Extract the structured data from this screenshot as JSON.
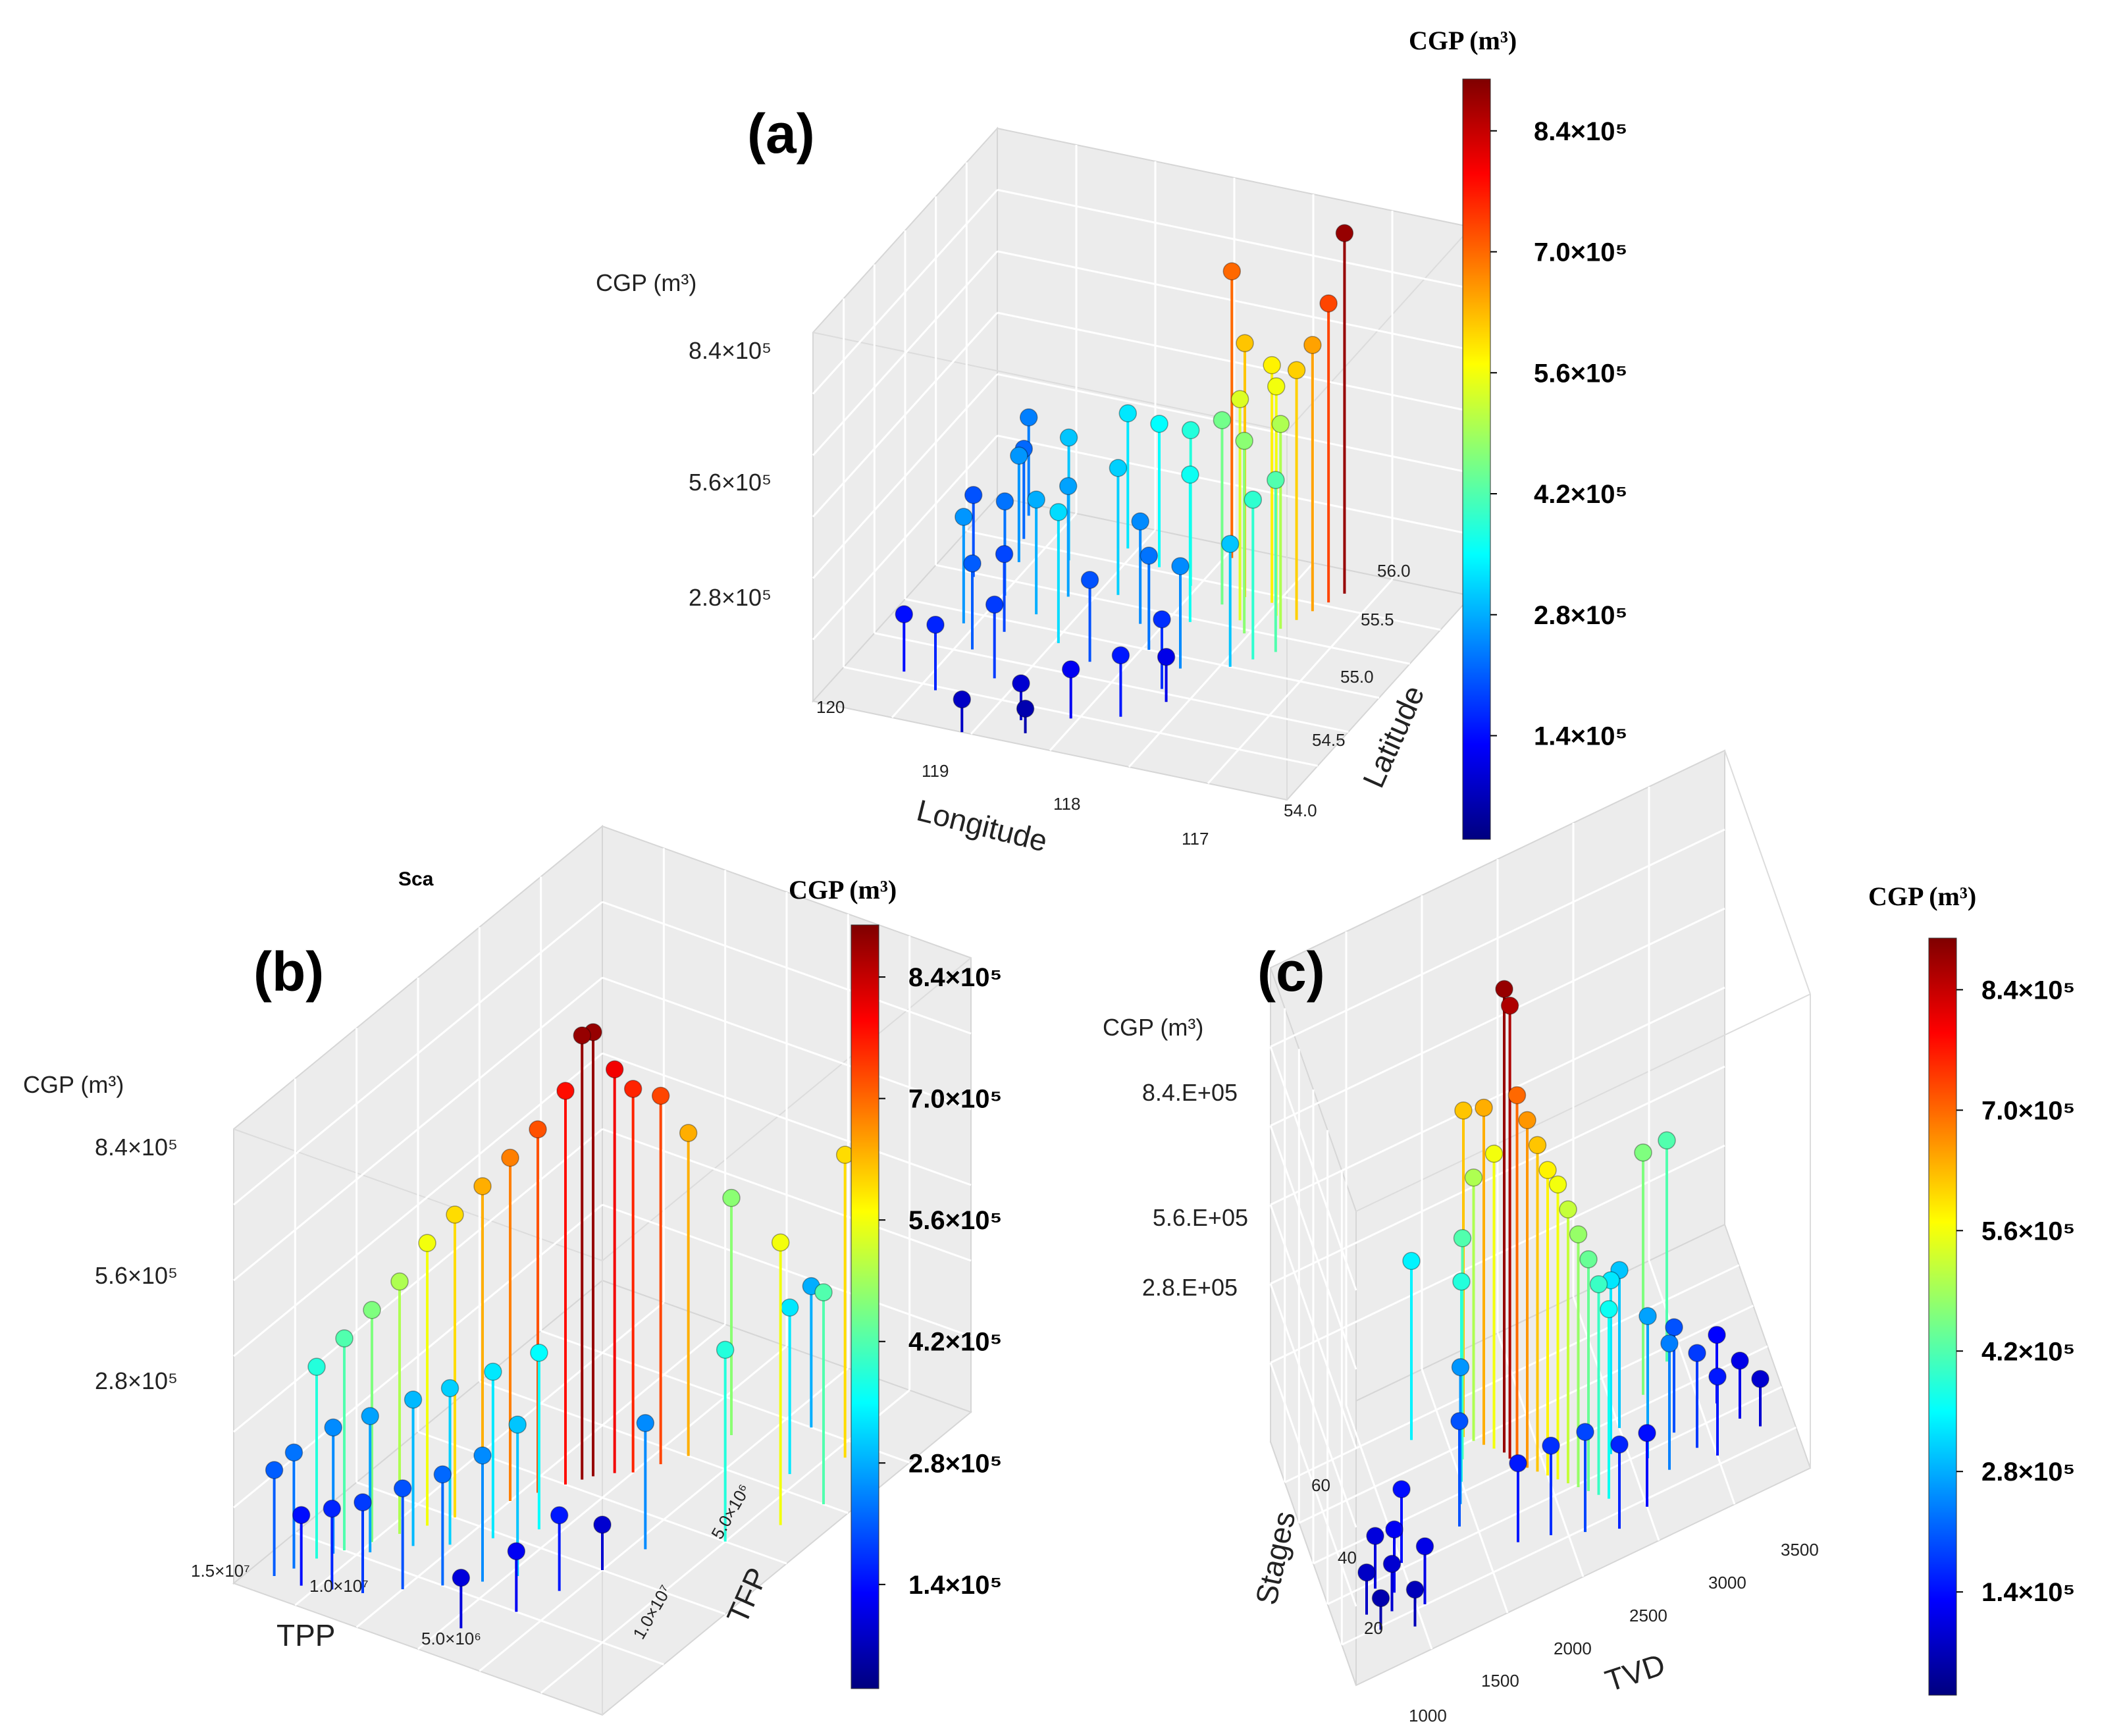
{
  "figure": {
    "stray_text": "Sca"
  },
  "colors": {
    "colormap": [
      "#00007f",
      "#0000ff",
      "#007fff",
      "#00ffff",
      "#7fff7f",
      "#ffff00",
      "#ff7f00",
      "#ff0000",
      "#7f0000"
    ],
    "pane": "#ececec",
    "grid": "#ffffff"
  },
  "chart_data": [
    {
      "type": "scatter3d",
      "panel_label": "(a)",
      "z_label": "CGP (m³)",
      "z_ticks": [
        "2.8×10⁵",
        "5.6×10⁵",
        "8.4×10⁵"
      ],
      "z_tick_values": [
        280000,
        560000,
        840000
      ],
      "x_label": "Longitude",
      "x_ticks": [
        "120",
        "119",
        "118",
        "117"
      ],
      "x_range": [
        116.5,
        120
      ],
      "y_label": "Latitude",
      "y_ticks": [
        "54.0",
        "54.5",
        "55.0",
        "55.5",
        "56.0"
      ],
      "y_range": [
        54.0,
        56.0
      ],
      "z_range": [
        0,
        900000
      ],
      "colorbar": {
        "title": "CGP (m³)",
        "ticks": [
          "1.4×10⁵",
          "2.8×10⁵",
          "4.2×10⁵",
          "5.6×10⁵",
          "7.0×10⁵",
          "8.4×10⁵"
        ],
        "tick_values": [
          140000,
          280000,
          420000,
          560000,
          700000,
          840000
        ],
        "range": [
          20000,
          900000
        ]
      },
      "points": [
        {
          "x": 119.2,
          "y": 55.8,
          "z": 880000
        },
        {
          "x": 119.15,
          "y": 55.7,
          "z": 730000
        },
        {
          "x": 119.1,
          "y": 55.6,
          "z": 650000
        },
        {
          "x": 119.05,
          "y": 55.5,
          "z": 610000
        },
        {
          "x": 118.3,
          "y": 55.9,
          "z": 700000
        },
        {
          "x": 118.6,
          "y": 55.6,
          "z": 620000
        },
        {
          "x": 118.9,
          "y": 55.5,
          "z": 560000
        },
        {
          "x": 118.7,
          "y": 55.4,
          "z": 540000
        },
        {
          "x": 119.0,
          "y": 55.4,
          "z": 500000
        },
        {
          "x": 118.8,
          "y": 55.3,
          "z": 470000
        },
        {
          "x": 118.5,
          "y": 55.5,
          "z": 450000
        },
        {
          "x": 118.2,
          "y": 55.6,
          "z": 380000
        },
        {
          "x": 117.9,
          "y": 55.7,
          "z": 350000
        },
        {
          "x": 117.6,
          "y": 55.8,
          "z": 330000
        },
        {
          "x": 117.3,
          "y": 55.6,
          "z": 300000
        },
        {
          "x": 117.0,
          "y": 55.5,
          "z": 260000
        },
        {
          "x": 116.8,
          "y": 55.9,
          "z": 240000
        },
        {
          "x": 116.9,
          "y": 55.7,
          "z": 220000
        },
        {
          "x": 118.9,
          "y": 55.0,
          "z": 300000
        },
        {
          "x": 118.6,
          "y": 54.9,
          "z": 250000
        },
        {
          "x": 118.3,
          "y": 55.0,
          "z": 230000
        },
        {
          "x": 118.0,
          "y": 54.8,
          "z": 200000
        },
        {
          "x": 117.7,
          "y": 54.9,
          "z": 320000
        },
        {
          "x": 117.4,
          "y": 55.1,
          "z": 280000
        },
        {
          "x": 117.2,
          "y": 54.7,
          "z": 210000
        },
        {
          "x": 117.0,
          "y": 54.9,
          "z": 260000
        },
        {
          "x": 118.5,
          "y": 54.4,
          "z": 150000
        },
        {
          "x": 118.2,
          "y": 54.3,
          "z": 120000
        },
        {
          "x": 117.9,
          "y": 54.2,
          "z": 90000
        },
        {
          "x": 117.5,
          "y": 54.5,
          "z": 180000
        },
        {
          "x": 117.2,
          "y": 54.3,
          "z": 160000
        },
        {
          "x": 116.9,
          "y": 54.4,
          "z": 140000
        },
        {
          "x": 118.7,
          "y": 54.6,
          "z": 110000
        },
        {
          "x": 118.0,
          "y": 54.1,
          "z": 60000
        },
        {
          "x": 117.6,
          "y": 54.0,
          "z": 80000
        },
        {
          "x": 119.1,
          "y": 55.2,
          "z": 420000
        },
        {
          "x": 119.0,
          "y": 55.1,
          "z": 390000
        },
        {
          "x": 118.8,
          "y": 55.6,
          "z": 580000
        },
        {
          "x": 118.4,
          "y": 55.3,
          "z": 360000
        },
        {
          "x": 117.8,
          "y": 55.4,
          "z": 310000
        },
        {
          "x": 117.5,
          "y": 55.3,
          "z": 270000
        },
        {
          "x": 117.1,
          "y": 55.2,
          "z": 230000
        },
        {
          "x": 116.8,
          "y": 55.3,
          "z": 200000
        },
        {
          "x": 118.1,
          "y": 55.2,
          "z": 250000
        },
        {
          "x": 117.3,
          "y": 54.9,
          "z": 190000
        },
        {
          "x": 118.6,
          "y": 54.7,
          "z": 170000
        }
      ]
    },
    {
      "type": "scatter3d",
      "panel_label": "(b)",
      "z_label": "CGP (m³)",
      "z_ticks": [
        "2.8×10⁵",
        "5.6×10⁵",
        "8.4×10⁵"
      ],
      "z_tick_values": [
        280000,
        560000,
        840000
      ],
      "x_label": "TPP",
      "x_ticks": [
        "1.5×10⁷",
        "1.0×10⁷",
        "5.0×10⁶"
      ],
      "x_range": [
        0,
        15000000
      ],
      "y_label": "TFP",
      "y_ticks": [
        "1.0×10⁷",
        "5.0×10⁶"
      ],
      "y_range": [
        0,
        12000000
      ],
      "z_range": [
        0,
        900000
      ],
      "colorbar": {
        "title": "CGP (m³)",
        "ticks": [
          "1.4×10⁵",
          "2.8×10⁵",
          "4.2×10⁵",
          "5.6×10⁵",
          "7.0×10⁵",
          "8.4×10⁵"
        ],
        "tick_values": [
          140000,
          280000,
          420000,
          560000,
          700000,
          840000
        ],
        "range": [
          20000,
          900000
        ]
      },
      "points": [
        {
          "x": 14500000,
          "y": 9000000,
          "z": 520000
        },
        {
          "x": 14000000,
          "y": 8000000,
          "z": 420000
        },
        {
          "x": 13500000,
          "y": 7000000,
          "z": 560000
        },
        {
          "x": 13000000,
          "y": 9500000,
          "z": 600000
        },
        {
          "x": 12500000,
          "y": 6000000,
          "z": 380000
        },
        {
          "x": 12000000,
          "y": 8500000,
          "z": 330000
        },
        {
          "x": 11000000,
          "y": 10000000,
          "z": 280000
        },
        {
          "x": 10500000,
          "y": 5000000,
          "z": 250000
        },
        {
          "x": 10000000,
          "y": 4000000,
          "z": 90000
        },
        {
          "x": 9000000,
          "y": 9000000,
          "z": 470000
        },
        {
          "x": 8500000,
          "y": 8000000,
          "z": 640000
        },
        {
          "x": 8000000,
          "y": 7500000,
          "z": 730000
        },
        {
          "x": 7500000,
          "y": 7000000,
          "z": 760000
        },
        {
          "x": 7000000,
          "y": 6800000,
          "z": 800000
        },
        {
          "x": 6500000,
          "y": 6500000,
          "z": 880000
        },
        {
          "x": 6300000,
          "y": 6300000,
          "z": 880000
        },
        {
          "x": 6000000,
          "y": 6000000,
          "z": 780000
        },
        {
          "x": 5500000,
          "y": 5500000,
          "z": 720000
        },
        {
          "x": 5000000,
          "y": 5000000,
          "z": 680000
        },
        {
          "x": 4500000,
          "y": 4500000,
          "z": 640000
        },
        {
          "x": 4000000,
          "y": 4000000,
          "z": 600000
        },
        {
          "x": 3500000,
          "y": 3500000,
          "z": 560000
        },
        {
          "x": 3000000,
          "y": 3000000,
          "z": 500000
        },
        {
          "x": 2500000,
          "y": 2500000,
          "z": 460000
        },
        {
          "x": 2000000,
          "y": 2000000,
          "z": 420000
        },
        {
          "x": 1500000,
          "y": 1500000,
          "z": 380000
        },
        {
          "x": 7800000,
          "y": 3000000,
          "z": 300000
        },
        {
          "x": 7000000,
          "y": 2500000,
          "z": 250000
        },
        {
          "x": 6000000,
          "y": 2000000,
          "z": 220000
        },
        {
          "x": 5000000,
          "y": 1500000,
          "z": 200000
        },
        {
          "x": 4000000,
          "y": 1000000,
          "z": 180000
        },
        {
          "x": 3000000,
          "y": 800000,
          "z": 160000
        },
        {
          "x": 2000000,
          "y": 600000,
          "z": 140000
        },
        {
          "x": 9500000,
          "y": 3000000,
          "z": 150000
        },
        {
          "x": 9000000,
          "y": 2000000,
          "z": 120000
        },
        {
          "x": 8000000,
          "y": 1000000,
          "z": 100000
        },
        {
          "x": 6800000,
          "y": 4500000,
          "z": 350000
        },
        {
          "x": 5800000,
          "y": 3800000,
          "z": 330000
        },
        {
          "x": 4800000,
          "y": 3200000,
          "z": 310000
        },
        {
          "x": 3800000,
          "y": 2800000,
          "z": 290000
        },
        {
          "x": 2800000,
          "y": 2200000,
          "z": 270000
        },
        {
          "x": 1800000,
          "y": 1800000,
          "z": 250000
        },
        {
          "x": 1200000,
          "y": 1000000,
          "z": 230000
        },
        {
          "x": 900000,
          "y": 600000,
          "z": 210000
        }
      ]
    },
    {
      "type": "scatter3d",
      "panel_label": "(c)",
      "z_label": "CGP (m³)",
      "z_ticks": [
        "2.8.E+05",
        "5.6.E+05",
        "8.4.E+05"
      ],
      "z_tick_values": [
        280000,
        560000,
        840000
      ],
      "x_label": "TVD",
      "x_ticks": [
        "1000",
        "1500",
        "2000",
        "2500",
        "3000",
        "3500"
      ],
      "x_range": [
        800,
        3800
      ],
      "y_label": "Stages",
      "y_ticks": [
        "20",
        "40",
        "60"
      ],
      "y_range": [
        5,
        70
      ],
      "z_range": [
        0,
        900000
      ],
      "colorbar": {
        "title": "CGP (m³)",
        "ticks": [
          "1.4×10⁵",
          "2.8×10⁵",
          "4.2×10⁵",
          "5.6×10⁵",
          "7.0×10⁵",
          "8.4×10⁵"
        ],
        "tick_values": [
          140000,
          280000,
          420000,
          560000,
          700000,
          840000
        ],
        "range": [
          20000,
          900000
        ]
      },
      "points": [
        {
          "x": 1000,
          "y": 20,
          "z": 80000
        },
        {
          "x": 1050,
          "y": 15,
          "z": 60000
        },
        {
          "x": 1100,
          "y": 25,
          "z": 100000
        },
        {
          "x": 1150,
          "y": 18,
          "z": 90000
        },
        {
          "x": 1200,
          "y": 22,
          "z": 120000
        },
        {
          "x": 1250,
          "y": 12,
          "z": 70000
        },
        {
          "x": 1300,
          "y": 28,
          "z": 140000
        },
        {
          "x": 1350,
          "y": 16,
          "z": 110000
        },
        {
          "x": 1800,
          "y": 40,
          "z": 380000
        },
        {
          "x": 1850,
          "y": 45,
          "z": 420000
        },
        {
          "x": 1900,
          "y": 50,
          "z": 620000
        },
        {
          "x": 1950,
          "y": 48,
          "z": 500000
        },
        {
          "x": 2000,
          "y": 46,
          "z": 640000
        },
        {
          "x": 2050,
          "y": 44,
          "z": 560000
        },
        {
          "x": 2100,
          "y": 42,
          "z": 880000
        },
        {
          "x": 2120,
          "y": 40,
          "z": 860000
        },
        {
          "x": 2150,
          "y": 38,
          "z": 700000
        },
        {
          "x": 2200,
          "y": 36,
          "z": 660000
        },
        {
          "x": 2250,
          "y": 34,
          "z": 620000
        },
        {
          "x": 2300,
          "y": 32,
          "z": 580000
        },
        {
          "x": 2350,
          "y": 30,
          "z": 560000
        },
        {
          "x": 2400,
          "y": 28,
          "z": 520000
        },
        {
          "x": 2450,
          "y": 26,
          "z": 480000
        },
        {
          "x": 2500,
          "y": 24,
          "z": 440000
        },
        {
          "x": 2550,
          "y": 22,
          "z": 400000
        },
        {
          "x": 2600,
          "y": 20,
          "z": 360000
        },
        {
          "x": 2700,
          "y": 30,
          "z": 330000
        },
        {
          "x": 2800,
          "y": 35,
          "z": 300000
        },
        {
          "x": 2900,
          "y": 25,
          "z": 270000
        },
        {
          "x": 3000,
          "y": 20,
          "z": 240000
        },
        {
          "x": 3100,
          "y": 28,
          "z": 200000
        },
        {
          "x": 3200,
          "y": 22,
          "z": 180000
        },
        {
          "x": 3300,
          "y": 18,
          "z": 150000
        },
        {
          "x": 3400,
          "y": 30,
          "z": 130000
        },
        {
          "x": 3500,
          "y": 24,
          "z": 110000
        },
        {
          "x": 3600,
          "y": 20,
          "z": 90000
        },
        {
          "x": 1700,
          "y": 30,
          "z": 200000
        },
        {
          "x": 1750,
          "y": 35,
          "z": 260000
        },
        {
          "x": 2000,
          "y": 20,
          "z": 150000
        },
        {
          "x": 2200,
          "y": 18,
          "z": 170000
        },
        {
          "x": 2400,
          "y": 15,
          "z": 190000
        },
        {
          "x": 2600,
          "y": 12,
          "z": 160000
        },
        {
          "x": 2800,
          "y": 14,
          "z": 140000
        },
        {
          "x": 3000,
          "y": 40,
          "z": 460000
        },
        {
          "x": 3200,
          "y": 45,
          "z": 420000
        },
        {
          "x": 1600,
          "y": 55,
          "z": 340000
        }
      ]
    }
  ]
}
